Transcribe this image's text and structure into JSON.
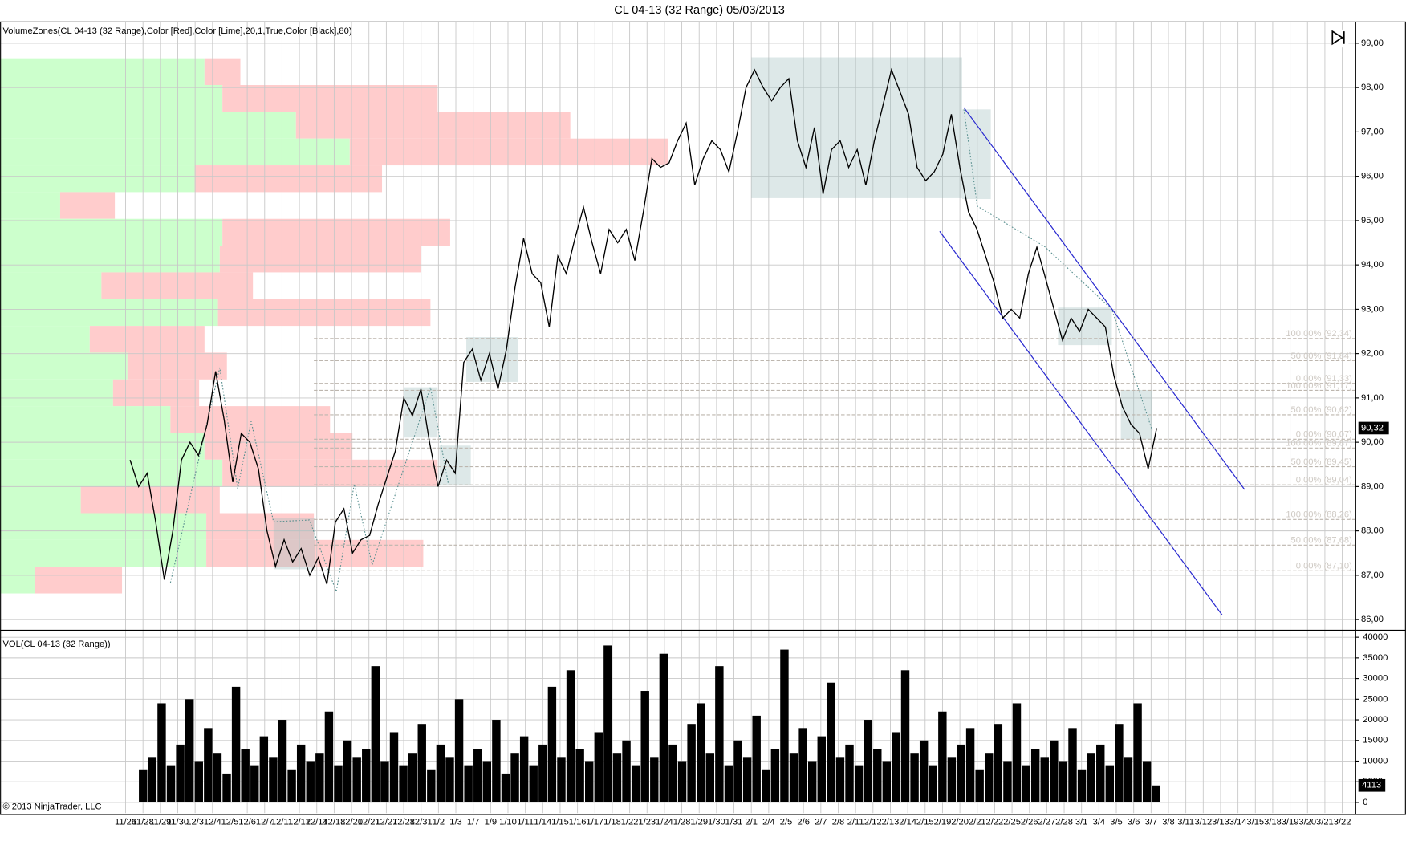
{
  "chart_data": [
    {
      "type": "line",
      "title": "CL 04-13 (32 Range)  05/03/2013",
      "subtitle": "VolumeZones(CL 04-13 (32 Range),Color [Red],Color [Lime],20,1,True,Color [Black],80)",
      "color": "#000000",
      "ylim": [
        85.78,
        99.47
      ],
      "yticks": [
        {
          "value": 86,
          "label": "86,00"
        },
        {
          "value": 87,
          "label": "87,00"
        },
        {
          "value": 88,
          "label": "88,00"
        },
        {
          "value": 89,
          "label": "89,00"
        },
        {
          "value": 90,
          "label": "90,00"
        },
        {
          "value": 91,
          "label": "91,00"
        },
        {
          "value": 92,
          "label": "92,00"
        },
        {
          "value": 93,
          "label": "93,00"
        },
        {
          "value": 94,
          "label": "94,00"
        },
        {
          "value": 95,
          "label": "95,00"
        },
        {
          "value": 96,
          "label": "96,00"
        },
        {
          "value": 97,
          "label": "97,00"
        },
        {
          "value": 98,
          "label": "98,00"
        },
        {
          "value": 99,
          "label": "99,00"
        }
      ],
      "grid": true,
      "x_labels": [
        "11/26",
        "11/28",
        "11/29",
        "11/30",
        "12/3",
        "12/4",
        "12/5",
        "12/6",
        "12/7",
        "12/11",
        "12/12",
        "12/14",
        "12/18",
        "12/20",
        "12/21",
        "12/27",
        "12/28",
        "12/31",
        "1/2",
        "1/3",
        "1/7",
        "1/9",
        "1/10",
        "1/11",
        "1/14",
        "1/15",
        "1/16",
        "1/17",
        "1/18",
        "1/22",
        "1/23",
        "1/24",
        "1/28",
        "1/29",
        "1/30",
        "1/31",
        "2/1",
        "2/4",
        "2/5",
        "2/6",
        "2/7",
        "2/8",
        "2/11",
        "2/12",
        "2/13",
        "2/14",
        "2/15",
        "2/19",
        "2/20",
        "2/21",
        "2/22",
        "2/25",
        "2/26",
        "2/27",
        "2/28",
        "3/1",
        "3/4",
        "3/5",
        "3/6",
        "3/7",
        "3/8",
        "3/11",
        "3/12",
        "3/13",
        "3/14",
        "3/15",
        "3/18",
        "3/19",
        "3/20",
        "3/21",
        "3/22"
      ],
      "values": [
        89.6,
        89.0,
        89.3,
        88.2,
        86.9,
        88.0,
        89.6,
        90.0,
        89.7,
        90.4,
        91.6,
        90.5,
        89.1,
        90.2,
        90.0,
        89.4,
        88.0,
        87.2,
        87.8,
        87.3,
        87.6,
        87.0,
        87.4,
        86.8,
        88.2,
        88.5,
        87.5,
        87.8,
        87.9,
        88.6,
        89.2,
        89.8,
        91.0,
        90.6,
        91.2,
        90.0,
        89.0,
        89.6,
        89.3,
        91.8,
        92.1,
        91.4,
        92.0,
        91.2,
        92.1,
        93.5,
        94.6,
        93.8,
        93.6,
        92.6,
        94.2,
        93.8,
        94.6,
        95.3,
        94.5,
        93.8,
        94.8,
        94.5,
        94.8,
        94.1,
        95.2,
        96.4,
        96.2,
        96.3,
        96.8,
        97.2,
        95.8,
        96.4,
        96.8,
        96.6,
        96.1,
        97.0,
        98.0,
        98.4,
        98.0,
        97.7,
        98.0,
        98.2,
        96.8,
        96.2,
        97.1,
        95.6,
        96.6,
        96.8,
        96.2,
        96.6,
        95.8,
        96.8,
        97.6,
        98.4,
        97.9,
        97.4,
        96.2,
        95.9,
        96.1,
        96.5,
        97.4,
        96.2,
        95.2,
        94.8,
        94.2,
        93.6,
        92.8,
        93.0,
        92.8,
        93.8,
        94.4,
        93.7,
        93.0,
        92.3,
        92.8,
        92.5,
        93.0,
        92.8,
        92.6,
        91.5,
        90.8,
        90.4,
        90.2,
        89.4,
        90.32
      ],
      "last_label": "90,32",
      "zone_lim": [
        86.59,
        98.66
      ],
      "zone_colors": [
        "#ccffcc",
        "#ffcccc"
      ],
      "zone_up": [
        228,
        248,
        330,
        390,
        217,
        67,
        248,
        245,
        113,
        243,
        100,
        142,
        126,
        190,
        228,
        248,
        90,
        230,
        230,
        39
      ],
      "zone_down": [
        40,
        240,
        306,
        355,
        209,
        61,
        254,
        224,
        169,
        237,
        128,
        111,
        96,
        178,
        165,
        240,
        155,
        120,
        242,
        97
      ],
      "fib_levels": [
        {
          "value": 92.34,
          "label": "100.00% (92,34)"
        },
        {
          "value": 91.84,
          "label": "50.00% (91,84)"
        },
        {
          "value": 91.33,
          "label": "0.00% (91,33)"
        },
        {
          "value": 91.17,
          "label": "100.00% (91,17)"
        },
        {
          "value": 90.62,
          "label": "50.00% (90,62)"
        },
        {
          "value": 90.07,
          "label": "0.00% (90,07)"
        },
        {
          "value": 89.87,
          "label": "100.00% (89,87)"
        },
        {
          "value": 89.45,
          "label": "50.00% (89,45)"
        },
        {
          "value": 89.04,
          "label": "0.00% (89,04)"
        },
        {
          "value": 88.26,
          "label": "100.00% (88,26)"
        },
        {
          "value": 87.68,
          "label": "50.00% (87,68)"
        },
        {
          "value": 87.1,
          "label": "0.00% (87,10)"
        }
      ]
    },
    {
      "type": "bar",
      "title": "VOL(CL 04-13 (32 Range))",
      "color": "#000000",
      "ylim": [
        -2600,
        41700
      ],
      "yticks": [
        0,
        5000,
        10000,
        15000,
        20000,
        25000,
        30000,
        35000,
        40000
      ],
      "values": [
        8000,
        11000,
        24000,
        9000,
        14000,
        25000,
        10000,
        18000,
        12000,
        7000,
        28000,
        13000,
        9000,
        16000,
        11000,
        20000,
        8000,
        14000,
        10000,
        12000,
        22000,
        9000,
        15000,
        11000,
        13000,
        33000,
        10000,
        17000,
        9000,
        12000,
        19000,
        8000,
        14000,
        11000,
        25000,
        9000,
        13000,
        10000,
        20000,
        7000,
        12000,
        16000,
        9000,
        14000,
        28000,
        11000,
        32000,
        13000,
        10000,
        17000,
        38000,
        12000,
        15000,
        9000,
        27000,
        11000,
        36000,
        14000,
        10000,
        19000,
        24000,
        12000,
        33000,
        9000,
        15000,
        11000,
        21000,
        8000,
        13000,
        37000,
        12000,
        18000,
        10000,
        16000,
        29000,
        11000,
        14000,
        9000,
        20000,
        13000,
        10000,
        17000,
        32000,
        12000,
        15000,
        9000,
        22000,
        11000,
        14000,
        18000,
        8000,
        12000,
        19000,
        10000,
        24000,
        9000,
        13000,
        11000,
        15000,
        10000,
        18000,
        8000,
        12000,
        14000,
        9000,
        19000,
        11000,
        24000,
        10000,
        4113
      ]
    }
  ],
  "copyright": "© 2013 NinjaTrader, LLC"
}
